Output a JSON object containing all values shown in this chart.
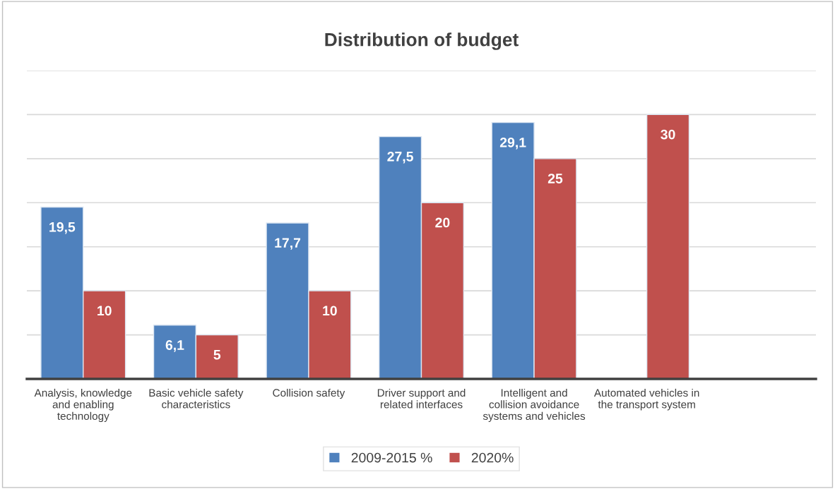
{
  "chart_data": {
    "type": "bar",
    "title": "Distribution of budget",
    "categories": [
      "Analysis, knowledge and enabling technology",
      "Basic vehicle safety characteristics",
      "Collision safety",
      "Driver support and related interfaces",
      "Intelligent and collision avoidance systems and vehicles",
      "Automated vehicles in the transport system",
      null
    ],
    "series": [
      {
        "name": "2009-2015 %",
        "color": "#4f81bd",
        "values": [
          19.5,
          6.1,
          17.7,
          27.5,
          29.1,
          null,
          null
        ],
        "value_labels": [
          "19,5",
          "6,1",
          "17,7",
          "27,5",
          "29,1",
          null,
          null
        ]
      },
      {
        "name": "2020%",
        "color": "#c0504d",
        "values": [
          10,
          5,
          10,
          20,
          25,
          30,
          null
        ],
        "value_labels": [
          "10",
          "5",
          "10",
          "20",
          "25",
          "30",
          null
        ]
      }
    ],
    "ylim": [
      0,
      35
    ],
    "yticks": [
      {
        "value": 0,
        "label": null
      },
      {
        "value": 5,
        "label": null
      },
      {
        "value": 10,
        "label": null
      },
      {
        "value": 15,
        "label": null
      },
      {
        "value": 20,
        "label": null
      },
      {
        "value": 25,
        "label": null
      },
      {
        "value": 30,
        "label": null
      },
      {
        "value": 35,
        "label": null
      }
    ],
    "grid": "y",
    "tick_labels": "x",
    "legend": "bottom"
  }
}
